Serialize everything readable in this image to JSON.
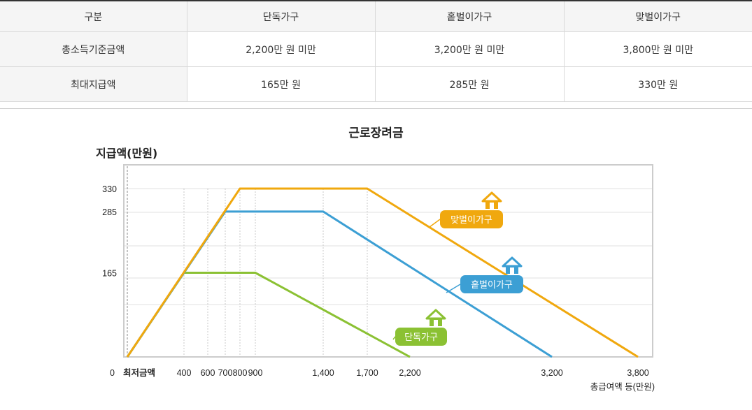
{
  "table": {
    "headers": [
      "구분",
      "단독가구",
      "홑벌이가구",
      "맞벌이가구"
    ],
    "rows": [
      [
        "총소득기준금액",
        "2,200만 원 미만",
        "3,200만 원 미만",
        "3,800만 원 미만"
      ],
      [
        "최대지급액",
        "165만 원",
        "285만 원",
        "330만 원"
      ]
    ]
  },
  "chart_data": {
    "type": "line",
    "title": "근로장려금",
    "ylabel": "지급액(만원)",
    "xlabel": "총급여액 등(만원)",
    "x_origin_label": "0",
    "x_min_label": "최저금액",
    "y_ticks": [
      0,
      165,
      285,
      330
    ],
    "x_ticks": [
      {
        "value": 400,
        "label": "400"
      },
      {
        "value": 600,
        "label": "600"
      },
      {
        "value": 700,
        "label": "700"
      },
      {
        "value": 800,
        "label": "800"
      },
      {
        "value": 900,
        "label": "900"
      },
      {
        "value": 1400,
        "label": "1,400"
      },
      {
        "value": 1700,
        "label": "1,700"
      },
      {
        "value": 2200,
        "label": "2,200"
      },
      {
        "value": 3200,
        "label": "3,200"
      },
      {
        "value": 3800,
        "label": "3,800"
      }
    ],
    "grid": true,
    "series": [
      {
        "name": "단독가구",
        "color": "#8bc133",
        "icon": "house-icon",
        "points": [
          [
            0,
            0
          ],
          [
            400,
            165
          ],
          [
            900,
            165
          ],
          [
            2200,
            0
          ]
        ]
      },
      {
        "name": "홑벌이가구",
        "color": "#3c9fd4",
        "icon": "house-icon",
        "points": [
          [
            0,
            0
          ],
          [
            700,
            285
          ],
          [
            1400,
            285
          ],
          [
            3200,
            0
          ]
        ]
      },
      {
        "name": "맞벌이가구",
        "color": "#f0a80e",
        "icon": "house-icon",
        "points": [
          [
            0,
            0
          ],
          [
            800,
            330
          ],
          [
            1700,
            330
          ],
          [
            3800,
            0
          ]
        ]
      }
    ]
  }
}
